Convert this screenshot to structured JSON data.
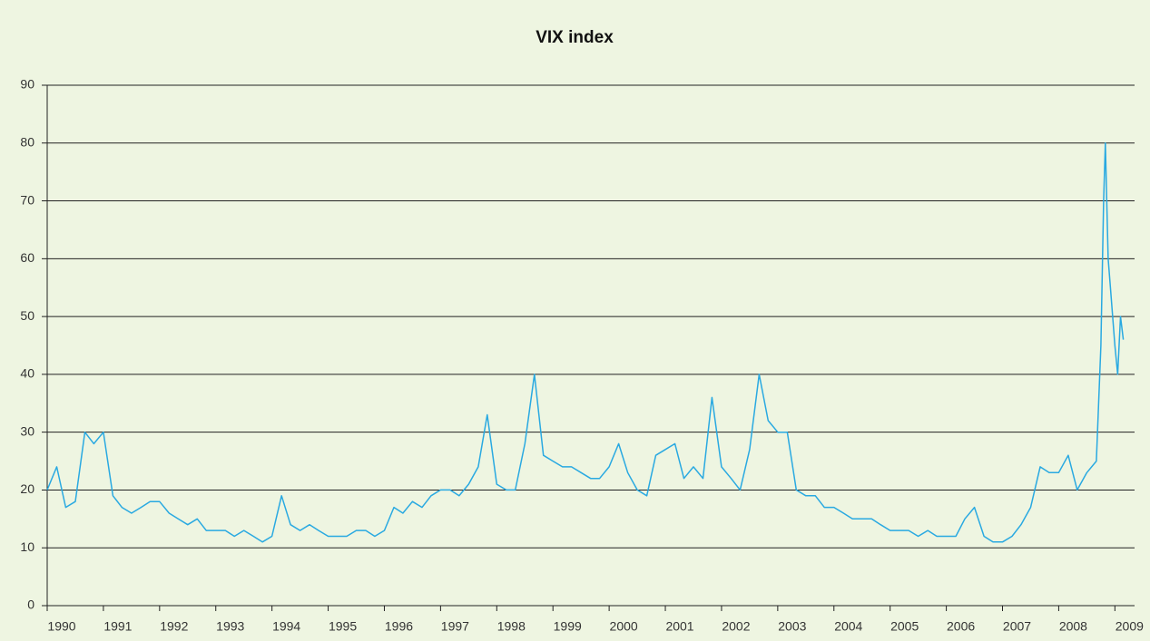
{
  "chart_data": {
    "type": "line",
    "title": "VIX index",
    "color": "#29a9e1",
    "grid": true,
    "xlim": [
      1990,
      2009.35
    ],
    "xticks": [
      1990,
      1991,
      1992,
      1993,
      1994,
      1995,
      1996,
      1997,
      1998,
      1999,
      2000,
      2001,
      2002,
      2003,
      2004,
      2005,
      2006,
      2007,
      2008,
      2009
    ],
    "ylim": [
      0,
      90
    ],
    "yticks": [
      0,
      10,
      20,
      30,
      40,
      50,
      60,
      70,
      80,
      90
    ],
    "x": [
      1990,
      1990.17,
      1990.33,
      1990.5,
      1990.67,
      1990.83,
      1991,
      1991.17,
      1991.33,
      1991.5,
      1991.67,
      1991.83,
      1992,
      1992.17,
      1992.33,
      1992.5,
      1992.67,
      1992.83,
      1993,
      1993.17,
      1993.33,
      1993.5,
      1993.67,
      1993.83,
      1994,
      1994.17,
      1994.33,
      1994.5,
      1994.67,
      1994.83,
      1995,
      1995.17,
      1995.33,
      1995.5,
      1995.67,
      1995.83,
      1996,
      1996.17,
      1996.33,
      1996.5,
      1996.67,
      1996.83,
      1997,
      1997.17,
      1997.33,
      1997.5,
      1997.67,
      1997.83,
      1998,
      1998.17,
      1998.33,
      1998.5,
      1998.67,
      1998.83,
      1999,
      1999.17,
      1999.33,
      1999.5,
      1999.67,
      1999.83,
      2000,
      2000.17,
      2000.33,
      2000.5,
      2000.67,
      2000.83,
      2001,
      2001.17,
      2001.33,
      2001.5,
      2001.67,
      2001.83,
      2002,
      2002.17,
      2002.33,
      2002.5,
      2002.67,
      2002.83,
      2003,
      2003.17,
      2003.33,
      2003.5,
      2003.67,
      2003.83,
      2004,
      2004.17,
      2004.33,
      2004.5,
      2004.67,
      2004.83,
      2005,
      2005.17,
      2005.33,
      2005.5,
      2005.67,
      2005.83,
      2006,
      2006.17,
      2006.33,
      2006.5,
      2006.67,
      2006.83,
      2007,
      2007.17,
      2007.33,
      2007.5,
      2007.67,
      2007.83,
      2008,
      2008.17,
      2008.33,
      2008.5,
      2008.67,
      2008.75,
      2008.8,
      2008.83,
      2008.88,
      2008.92,
      2009,
      2009.05,
      2009.1,
      2009.15
    ],
    "values": [
      20,
      24,
      17,
      18,
      30,
      28,
      30,
      19,
      17,
      16,
      17,
      18,
      18,
      16,
      15,
      14,
      15,
      13,
      13,
      13,
      12,
      13,
      12,
      11,
      12,
      19,
      14,
      13,
      14,
      13,
      12,
      12,
      12,
      13,
      13,
      12,
      13,
      17,
      16,
      18,
      17,
      19,
      20,
      20,
      19,
      21,
      24,
      33,
      21,
      20,
      20,
      28,
      40,
      26,
      25,
      24,
      24,
      23,
      22,
      22,
      24,
      28,
      23,
      20,
      19,
      26,
      27,
      28,
      22,
      24,
      22,
      36,
      24,
      22,
      20,
      27,
      40,
      32,
      30,
      30,
      20,
      19,
      19,
      17,
      17,
      16,
      15,
      15,
      15,
      14,
      13,
      13,
      13,
      12,
      13,
      12,
      12,
      12,
      15,
      17,
      12,
      11,
      11,
      12,
      14,
      17,
      24,
      23,
      23,
      26,
      20,
      23,
      25,
      45,
      70,
      80,
      60,
      55,
      45,
      40,
      50,
      46
    ]
  }
}
